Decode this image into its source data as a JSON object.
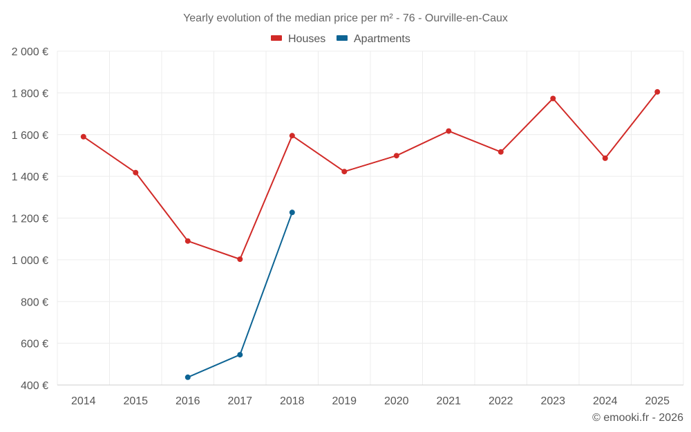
{
  "chart_data": {
    "type": "line",
    "title": "Yearly evolution of the median price per m² - 76 - Ourville-en-Caux",
    "categories": [
      "2014",
      "2015",
      "2016",
      "2017",
      "2018",
      "2019",
      "2020",
      "2021",
      "2022",
      "2023",
      "2024",
      "2025"
    ],
    "ylim": [
      400,
      2000
    ],
    "yticks": [
      400,
      600,
      800,
      1000,
      1200,
      1400,
      1600,
      1800,
      2000
    ],
    "ytick_labels": [
      "400 €",
      "600 €",
      "800 €",
      "1 000 €",
      "1 200 €",
      "1 400 €",
      "1 600 €",
      "1 800 €",
      "2 000 €"
    ],
    "xlabel": "",
    "ylabel": "",
    "legend_position": "top-center",
    "grid": true,
    "series": [
      {
        "name": "Houses",
        "color": "#d12a27",
        "values": [
          1590,
          1418,
          1090,
          1003,
          1595,
          1423,
          1499,
          1617,
          1517,
          1773,
          1487,
          1805
        ]
      },
      {
        "name": "Apartments",
        "color": "#0d6494",
        "values": [
          null,
          null,
          437,
          545,
          1227,
          null,
          null,
          null,
          null,
          null,
          null,
          null
        ]
      }
    ]
  },
  "credit": "© emooki.fr - 2026"
}
